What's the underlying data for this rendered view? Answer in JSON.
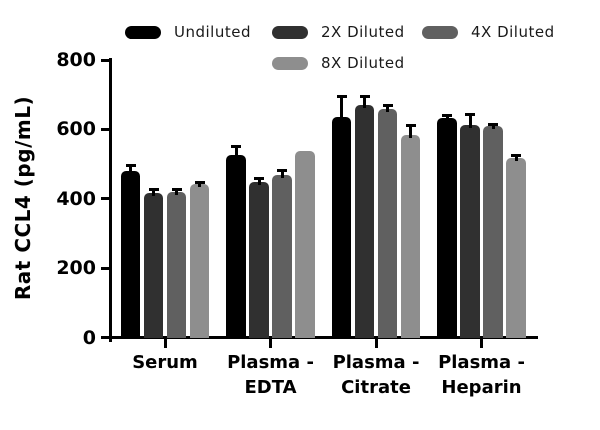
{
  "figure": {
    "background": "#ffffff",
    "axis_color": "#000000"
  },
  "chart_data": {
    "type": "bar",
    "title": "",
    "xlabel": "",
    "ylabel": "Rat CCL4 (pg/mL)",
    "ylim": [
      0,
      800
    ],
    "yticks": [
      0,
      200,
      400,
      600,
      800
    ],
    "grid": false,
    "legend_position": "top",
    "error_bars": "upper SD, black caps",
    "categories": [
      "Serum",
      "Plasma - EDTA",
      "Plasma - Citrate",
      "Plasma - Heparin"
    ],
    "series": [
      {
        "name": "Undiluted",
        "color": "#000000",
        "values": [
          480,
          527,
          636,
          633
        ],
        "errors": [
          16,
          24,
          60,
          8
        ]
      },
      {
        "name": "2X Diluted",
        "color": "#303030",
        "values": [
          416,
          447,
          670,
          614
        ],
        "errors": [
          10,
          12,
          25,
          28
        ]
      },
      {
        "name": "4X Diluted",
        "color": "#606060",
        "values": [
          419,
          468,
          660,
          609
        ],
        "errors": [
          8,
          14,
          8,
          6
        ]
      },
      {
        "name": "8X Diluted",
        "color": "#8e8e8e",
        "values": [
          442,
          539,
          584,
          517
        ],
        "errors": [
          6,
          0,
          28,
          8
        ]
      }
    ]
  }
}
